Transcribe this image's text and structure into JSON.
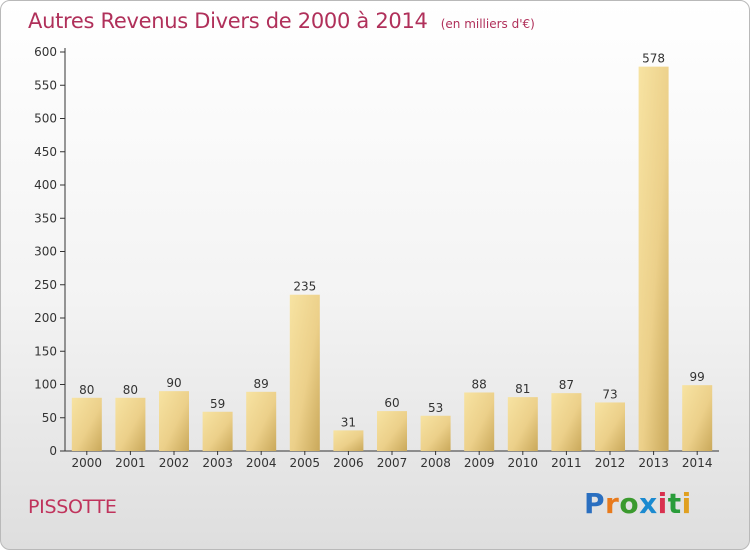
{
  "title": "Autres Revenus Divers de 2000 à 2014",
  "unit": "(en milliers d'€)",
  "commune": "PISSOTTE",
  "logo": {
    "letters": [
      "P",
      "r",
      "o",
      "x",
      "i",
      "t",
      "i"
    ],
    "colors": [
      "#2a6fc0",
      "#e87a1c",
      "#3b9a2e",
      "#1b8ad0",
      "#d9304e",
      "#2a9c3a",
      "#e0a020"
    ]
  },
  "chart_data": {
    "type": "bar",
    "categories": [
      "2000",
      "2001",
      "2002",
      "2003",
      "2004",
      "2005",
      "2006",
      "2007",
      "2008",
      "2009",
      "2010",
      "2011",
      "2012",
      "2013",
      "2014"
    ],
    "values": [
      80,
      80,
      90,
      59,
      89,
      235,
      31,
      60,
      53,
      88,
      81,
      87,
      73,
      578,
      99
    ],
    "ylim": [
      0,
      600
    ],
    "yticks": [
      0,
      50,
      100,
      150,
      200,
      250,
      300,
      350,
      400,
      450,
      500,
      550,
      600
    ],
    "grid": false,
    "colors": {
      "bar": "#f3d88c",
      "bar_dark": "#c9a85a",
      "axis": "#333333",
      "text": "#333333"
    }
  }
}
